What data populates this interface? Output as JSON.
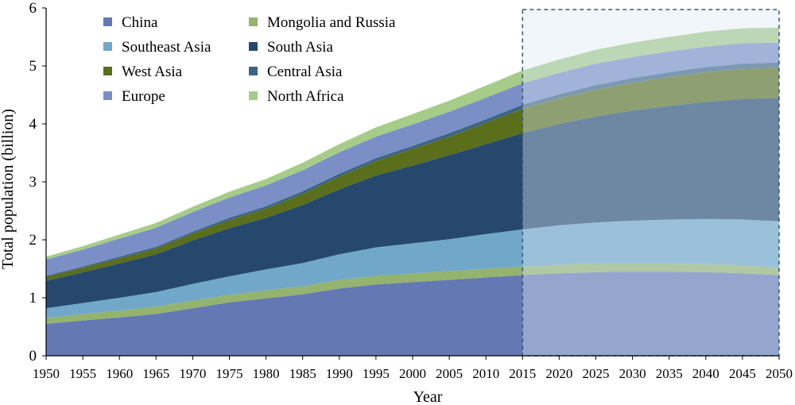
{
  "chart_data": {
    "type": "area",
    "stacked": true,
    "xlabel": "Year",
    "ylabel": "Total population (billion)",
    "xlim": [
      1950,
      2050
    ],
    "ylim": [
      0,
      6
    ],
    "x_ticks": [
      "1950",
      "1955",
      "1960",
      "1965",
      "1970",
      "1975",
      "1980",
      "1985",
      "1990",
      "1995",
      "2000",
      "2005",
      "2010",
      "2015",
      "2020",
      "2025",
      "2030",
      "2035",
      "2040",
      "2045",
      "2050"
    ],
    "y_ticks": [
      "0",
      "1",
      "2",
      "3",
      "4",
      "5",
      "6"
    ],
    "x": [
      1950,
      1955,
      1960,
      1965,
      1970,
      1975,
      1980,
      1985,
      1990,
      1995,
      2000,
      2005,
      2010,
      2015,
      2020,
      2025,
      2030,
      2035,
      2040,
      2045,
      2050
    ],
    "projection_start": 2015,
    "legend_position": "top-left",
    "grid": false,
    "series": [
      {
        "name": "China",
        "color": "#6478b4",
        "values": [
          0.55,
          0.61,
          0.66,
          0.72,
          0.82,
          0.92,
          0.99,
          1.06,
          1.16,
          1.23,
          1.27,
          1.31,
          1.35,
          1.39,
          1.42,
          1.44,
          1.45,
          1.45,
          1.44,
          1.42,
          1.39
        ]
      },
      {
        "name": "Mongolia and Russia",
        "color": "#93b36e",
        "values": [
          0.1,
          0.11,
          0.12,
          0.13,
          0.13,
          0.13,
          0.14,
          0.14,
          0.15,
          0.15,
          0.15,
          0.15,
          0.15,
          0.15,
          0.15,
          0.15,
          0.14,
          0.14,
          0.14,
          0.14,
          0.13
        ]
      },
      {
        "name": "Southeast Asia",
        "color": "#71a7c9",
        "values": [
          0.17,
          0.19,
          0.22,
          0.25,
          0.29,
          0.32,
          0.36,
          0.4,
          0.44,
          0.49,
          0.52,
          0.55,
          0.6,
          0.64,
          0.68,
          0.71,
          0.74,
          0.76,
          0.78,
          0.79,
          0.8
        ]
      },
      {
        "name": "South Asia",
        "color": "#26486d",
        "values": [
          0.47,
          0.53,
          0.59,
          0.65,
          0.75,
          0.83,
          0.89,
          1.0,
          1.12,
          1.24,
          1.34,
          1.45,
          1.55,
          1.66,
          1.75,
          1.83,
          1.9,
          1.96,
          2.02,
          2.08,
          2.13
        ]
      },
      {
        "name": "West Asia",
        "color": "#5a6e1c",
        "values": [
          0.07,
          0.08,
          0.09,
          0.1,
          0.12,
          0.14,
          0.16,
          0.19,
          0.22,
          0.25,
          0.29,
          0.32,
          0.37,
          0.42,
          0.44,
          0.46,
          0.48,
          0.5,
          0.51,
          0.52,
          0.52
        ]
      },
      {
        "name": "Central Asia",
        "color": "#3c6486",
        "values": [
          0.02,
          0.02,
          0.03,
          0.03,
          0.03,
          0.04,
          0.04,
          0.05,
          0.05,
          0.05,
          0.05,
          0.06,
          0.06,
          0.07,
          0.07,
          0.08,
          0.08,
          0.08,
          0.09,
          0.09,
          0.09
        ]
      },
      {
        "name": "Europe",
        "color": "#7b8fc6",
        "values": [
          0.28,
          0.29,
          0.31,
          0.33,
          0.34,
          0.35,
          0.36,
          0.36,
          0.37,
          0.37,
          0.37,
          0.37,
          0.37,
          0.37,
          0.37,
          0.37,
          0.36,
          0.36,
          0.35,
          0.35,
          0.34
        ]
      },
      {
        "name": "North Africa",
        "color": "#a7cc8a",
        "values": [
          0.05,
          0.06,
          0.07,
          0.08,
          0.09,
          0.1,
          0.11,
          0.13,
          0.14,
          0.16,
          0.18,
          0.19,
          0.21,
          0.22,
          0.23,
          0.24,
          0.25,
          0.25,
          0.26,
          0.26,
          0.26
        ]
      }
    ],
    "legend_order": [
      [
        "China",
        "Mongolia and Russia"
      ],
      [
        "Southeast Asia",
        "South Asia"
      ],
      [
        "West Asia",
        "Central Asia"
      ],
      [
        "Europe",
        "North Africa"
      ]
    ]
  }
}
